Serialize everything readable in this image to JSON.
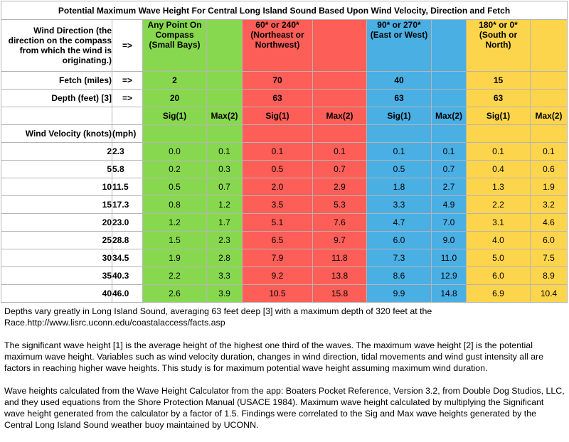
{
  "title": "Potential Maximum Wave Height For Central Long Island Sound Based Upon Wind Velocity, Direction and Fetch",
  "arrow": "=>",
  "direction_label": "Wind Direction (the direction on the compass from which the wind is originating.)",
  "directions": [
    "Any Point On Compass (Small Bays)",
    "60* or 240* (Northeast or Northwest)",
    "90* or 270* (East or West)",
    "180* or 0* (South or North)"
  ],
  "fetch_label": "Fetch (miles)",
  "fetch": [
    "2",
    "70",
    "40",
    "15"
  ],
  "depth_label": "Depth (feet) [3]",
  "depth": [
    "20",
    "63",
    "63",
    "63"
  ],
  "sig_label": "Sig(1)",
  "max_label": "Max(2)",
  "velocity_label": "Wind Velocity (knots)",
  "mph_label": "(mph)",
  "rows": [
    {
      "knots": "2",
      "mph": "2.3",
      "values": [
        "0.0",
        "0.1",
        "0.1",
        "0.1",
        "0.1",
        "0.1",
        "0.1",
        "0.1"
      ]
    },
    {
      "knots": "5",
      "mph": "5.8",
      "values": [
        "0.2",
        "0.3",
        "0.5",
        "0.7",
        "0.5",
        "0.7",
        "0.4",
        "0.6"
      ]
    },
    {
      "knots": "10",
      "mph": "11.5",
      "values": [
        "0.5",
        "0.7",
        "2.0",
        "2.9",
        "1.8",
        "2.7",
        "1.3",
        "1.9"
      ]
    },
    {
      "knots": "15",
      "mph": "17.3",
      "values": [
        "0.8",
        "1.2",
        "3.5",
        "5.3",
        "3.3",
        "4.9",
        "2.2",
        "3.2"
      ]
    },
    {
      "knots": "20",
      "mph": "23.0",
      "values": [
        "1.2",
        "1.7",
        "5.1",
        "7.6",
        "4.7",
        "7.0",
        "3.1",
        "4.6"
      ]
    },
    {
      "knots": "25",
      "mph": "28.8",
      "values": [
        "1.5",
        "2.3",
        "6.5",
        "9.7",
        "6.0",
        "9.0",
        "4.0",
        "6.0"
      ]
    },
    {
      "knots": "30",
      "mph": "34.5",
      "values": [
        "1.9",
        "2.8",
        "7.9",
        "11.8",
        "7.3",
        "11.0",
        "5.0",
        "7.5"
      ]
    },
    {
      "knots": "35",
      "mph": "40.3",
      "values": [
        "2.2",
        "3.3",
        "9.2",
        "13.8",
        "8.6",
        "12.9",
        "6.0",
        "8.9"
      ]
    },
    {
      "knots": "40",
      "mph": "46.0",
      "values": [
        "2.6",
        "3.9",
        "10.5",
        "15.8",
        "9.9",
        "14.8",
        "6.9",
        "10.4"
      ]
    }
  ],
  "notes": [
    "Depths vary greatly in Long Island Sound, averaging 63 feet deep [3] with a maximum depth of 320 feet at the Race.http://www.lisrc.uconn.edu/coastalaccess/facts.asp",
    "The significant wave height [1] is the average height of the highest one third of the waves. The maximum wave height [2] is the potential maximum wave height.  Variables such as wind velocity duration, changes in wind direction, tidal movements and wind gust intensity all are factors in reaching higher wave heights.  This study is for maximum potential wave height assuming maximum wind duration.",
    "Wave heights calculated from the Wave Height Calculator from the app: Boaters Pocket Reference, Version 3.2, from Double Dog Studios, LLC, and they used equations from the Shore Protection Manual (USACE 1984).  Maximum wave height calculated by multiplying the Significant wave height generated from the calculator by a factor of 1.5.  Findings were correlated to the Sig and Max wave heights generated by the Central Long Island Sound weather buoy maintained by UCONN."
  ],
  "colors": {
    "any_point": "#88d84f",
    "northeast_northwest": "#fd5e57",
    "east_west": "#4aafe3",
    "south_north": "#fdd54c"
  }
}
